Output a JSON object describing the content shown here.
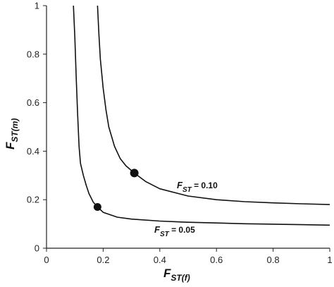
{
  "chart_data": {
    "type": "line",
    "xlabel": {
      "main": "F",
      "sub": "ST(f)"
    },
    "ylabel": {
      "main": "F",
      "sub": "ST(m)"
    },
    "xlim": [
      0,
      1
    ],
    "ylim": [
      0,
      1
    ],
    "xticks": [
      "0",
      "0.2",
      "0.4",
      "0.6",
      "0.8",
      "1"
    ],
    "yticks": [
      "0",
      "0.2",
      "0.4",
      "0.6",
      "0.8",
      "1"
    ],
    "grid": false,
    "series": [
      {
        "name": "F_ST = 0.05",
        "label": {
          "main": "F",
          "sub": "ST",
          "rest": " = 0.05"
        },
        "color": "#111111",
        "points": [
          [
            0.095,
            1.0
          ],
          [
            0.1,
            0.87
          ],
          [
            0.105,
            0.7
          ],
          [
            0.11,
            0.55
          ],
          [
            0.115,
            0.42
          ],
          [
            0.12,
            0.35
          ],
          [
            0.13,
            0.3
          ],
          [
            0.14,
            0.26
          ],
          [
            0.15,
            0.225
          ],
          [
            0.165,
            0.19
          ],
          [
            0.18,
            0.17
          ],
          [
            0.2,
            0.148
          ],
          [
            0.25,
            0.128
          ],
          [
            0.3,
            0.12
          ],
          [
            0.4,
            0.112
          ],
          [
            0.5,
            0.107
          ],
          [
            0.6,
            0.104
          ],
          [
            0.7,
            0.101
          ],
          [
            0.8,
            0.099
          ],
          [
            0.9,
            0.097
          ],
          [
            1.0,
            0.095
          ]
        ],
        "marker": [
          0.18,
          0.17
        ]
      },
      {
        "name": "F_ST = 0.10",
        "label": {
          "main": "F",
          "sub": "ST",
          "rest": " = 0.10"
        },
        "color": "#111111",
        "points": [
          [
            0.18,
            1.0
          ],
          [
            0.185,
            0.88
          ],
          [
            0.19,
            0.78
          ],
          [
            0.2,
            0.66
          ],
          [
            0.21,
            0.57
          ],
          [
            0.22,
            0.5
          ],
          [
            0.24,
            0.42
          ],
          [
            0.26,
            0.37
          ],
          [
            0.28,
            0.34
          ],
          [
            0.31,
            0.31
          ],
          [
            0.35,
            0.275
          ],
          [
            0.4,
            0.245
          ],
          [
            0.5,
            0.215
          ],
          [
            0.6,
            0.2
          ],
          [
            0.7,
            0.192
          ],
          [
            0.8,
            0.187
          ],
          [
            0.9,
            0.183
          ],
          [
            1.0,
            0.18
          ]
        ],
        "marker": [
          0.31,
          0.31
        ]
      }
    ]
  }
}
